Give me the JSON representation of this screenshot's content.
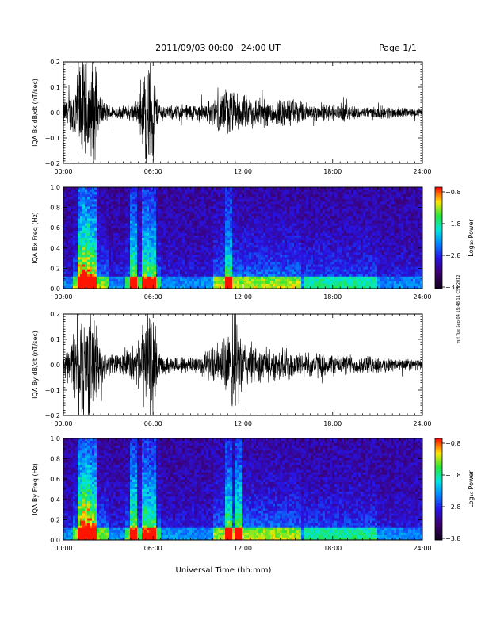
{
  "header": {
    "title": "2011/09/03  00:00−24:00 UT",
    "page": "Page 1/1"
  },
  "side_note": "mrl Tue Sep 04 19:48:11 CST 2012",
  "chart_data": [
    {
      "type": "line",
      "ylabel": "IQA Bx dB/dt (nT/sec)",
      "ylim": [
        -0.2,
        0.2
      ],
      "yticks": [
        "0.2",
        "0.1",
        "0.0",
        "−0.1",
        "−0.2"
      ],
      "xlim": [
        0,
        24
      ],
      "xticks": [
        "00:00",
        "06:00",
        "12:00",
        "18:00",
        "24:00"
      ],
      "xunit": "hours UT",
      "envelope": [
        {
          "x": 0,
          "amp": 0.05
        },
        {
          "x": 0.5,
          "amp": 0.09
        },
        {
          "x": 1.0,
          "amp": 0.25
        },
        {
          "x": 1.5,
          "amp": 0.25
        },
        {
          "x": 2.0,
          "amp": 0.25
        },
        {
          "x": 2.5,
          "amp": 0.06
        },
        {
          "x": 3.0,
          "amp": 0.04
        },
        {
          "x": 3.5,
          "amp": 0.03
        },
        {
          "x": 4.0,
          "amp": 0.03
        },
        {
          "x": 4.5,
          "amp": 0.04
        },
        {
          "x": 5.0,
          "amp": 0.06
        },
        {
          "x": 5.3,
          "amp": 0.18
        },
        {
          "x": 5.6,
          "amp": 0.25
        },
        {
          "x": 6.0,
          "amp": 0.25
        },
        {
          "x": 6.3,
          "amp": 0.05
        },
        {
          "x": 7.0,
          "amp": 0.03
        },
        {
          "x": 8.0,
          "amp": 0.04
        },
        {
          "x": 9.0,
          "amp": 0.04
        },
        {
          "x": 10.0,
          "amp": 0.06
        },
        {
          "x": 11.0,
          "amp": 0.12
        },
        {
          "x": 11.5,
          "amp": 0.09
        },
        {
          "x": 12.0,
          "amp": 0.08
        },
        {
          "x": 13.0,
          "amp": 0.07
        },
        {
          "x": 14.0,
          "amp": 0.06
        },
        {
          "x": 15.0,
          "amp": 0.07
        },
        {
          "x": 16.0,
          "amp": 0.05
        },
        {
          "x": 17.0,
          "amp": 0.04
        },
        {
          "x": 18.0,
          "amp": 0.04
        },
        {
          "x": 19.0,
          "amp": 0.04
        },
        {
          "x": 20.0,
          "amp": 0.03
        },
        {
          "x": 21.0,
          "amp": 0.03
        },
        {
          "x": 22.0,
          "amp": 0.03
        },
        {
          "x": 23.0,
          "amp": 0.02
        },
        {
          "x": 24.0,
          "amp": 0.02
        }
      ]
    },
    {
      "type": "heatmap",
      "ylabel": "IQA Bx Freq (Hz)",
      "ylim": [
        0.0,
        1.0
      ],
      "yticks": [
        "1.0",
        "0.8",
        "0.6",
        "0.4",
        "0.2",
        "0.0"
      ],
      "xlim": [
        0,
        24
      ],
      "xticks": [
        "00:00",
        "06:00",
        "12:00",
        "18:00",
        "24:00"
      ],
      "colorbar": {
        "label": "Log₁₀ Power",
        "range": [
          -3.8,
          -0.8
        ],
        "ticks": [
          "−0.8",
          "−1.8",
          "−2.8",
          "−3.8"
        ]
      },
      "bursts": [
        {
          "x": 1.1,
          "level": 0.75
        },
        {
          "x": 1.5,
          "level": 0.85
        },
        {
          "x": 1.9,
          "level": 0.7
        },
        {
          "x": 4.6,
          "level": 0.55
        },
        {
          "x": 5.4,
          "level": 0.55
        },
        {
          "x": 5.9,
          "level": 0.5
        },
        {
          "x": 11.0,
          "level": 0.45
        }
      ]
    },
    {
      "type": "line",
      "ylabel": "IQA By dB/dt (nT/sec)",
      "ylim": [
        -0.2,
        0.2
      ],
      "yticks": [
        "0.2",
        "0.1",
        "0.0",
        "−0.1",
        "−0.2"
      ],
      "xlim": [
        0,
        24
      ],
      "xticks": [
        "00:00",
        "06:00",
        "12:00",
        "18:00",
        "24:00"
      ],
      "envelope": [
        {
          "x": 0,
          "amp": 0.05
        },
        {
          "x": 0.5,
          "amp": 0.1
        },
        {
          "x": 1.0,
          "amp": 0.25
        },
        {
          "x": 1.5,
          "amp": 0.25
        },
        {
          "x": 2.0,
          "amp": 0.25
        },
        {
          "x": 2.5,
          "amp": 0.08
        },
        {
          "x": 3.0,
          "amp": 0.05
        },
        {
          "x": 3.5,
          "amp": 0.05
        },
        {
          "x": 4.0,
          "amp": 0.06
        },
        {
          "x": 4.5,
          "amp": 0.08
        },
        {
          "x": 5.0,
          "amp": 0.1
        },
        {
          "x": 5.5,
          "amp": 0.25
        },
        {
          "x": 6.0,
          "amp": 0.25
        },
        {
          "x": 6.3,
          "amp": 0.06
        },
        {
          "x": 7.0,
          "amp": 0.04
        },
        {
          "x": 8.0,
          "amp": 0.04
        },
        {
          "x": 9.0,
          "amp": 0.05
        },
        {
          "x": 10.0,
          "amp": 0.08
        },
        {
          "x": 11.0,
          "amp": 0.15
        },
        {
          "x": 11.5,
          "amp": 0.25
        },
        {
          "x": 12.0,
          "amp": 0.12
        },
        {
          "x": 13.0,
          "amp": 0.08
        },
        {
          "x": 14.0,
          "amp": 0.07
        },
        {
          "x": 15.0,
          "amp": 0.08
        },
        {
          "x": 16.0,
          "amp": 0.06
        },
        {
          "x": 17.0,
          "amp": 0.06
        },
        {
          "x": 18.0,
          "amp": 0.05
        },
        {
          "x": 19.0,
          "amp": 0.05
        },
        {
          "x": 20.0,
          "amp": 0.04
        },
        {
          "x": 21.0,
          "amp": 0.04
        },
        {
          "x": 22.0,
          "amp": 0.03
        },
        {
          "x": 23.0,
          "amp": 0.03
        },
        {
          "x": 24.0,
          "amp": 0.02
        }
      ]
    },
    {
      "type": "heatmap",
      "ylabel": "IQA By Freq (Hz)",
      "ylim": [
        0.0,
        1.0
      ],
      "yticks": [
        "1.0",
        "0.8",
        "0.6",
        "0.4",
        "0.2",
        "0.0"
      ],
      "xlim": [
        0,
        24
      ],
      "xticks": [
        "00:00",
        "06:00",
        "12:00",
        "18:00",
        "24:00"
      ],
      "xlabel": "Universal Time (hh:mm)",
      "colorbar": {
        "label": "Log₁₀ Power",
        "range": [
          -3.8,
          -0.8
        ],
        "ticks": [
          "−0.8",
          "−1.8",
          "−2.8",
          "−3.8"
        ]
      },
      "bursts": [
        {
          "x": 1.1,
          "level": 0.8
        },
        {
          "x": 1.5,
          "level": 0.9
        },
        {
          "x": 1.9,
          "level": 0.75
        },
        {
          "x": 4.6,
          "level": 0.6
        },
        {
          "x": 5.4,
          "level": 0.55
        },
        {
          "x": 5.9,
          "level": 0.5
        },
        {
          "x": 11.0,
          "level": 0.5
        },
        {
          "x": 11.7,
          "level": 0.55
        }
      ]
    }
  ]
}
